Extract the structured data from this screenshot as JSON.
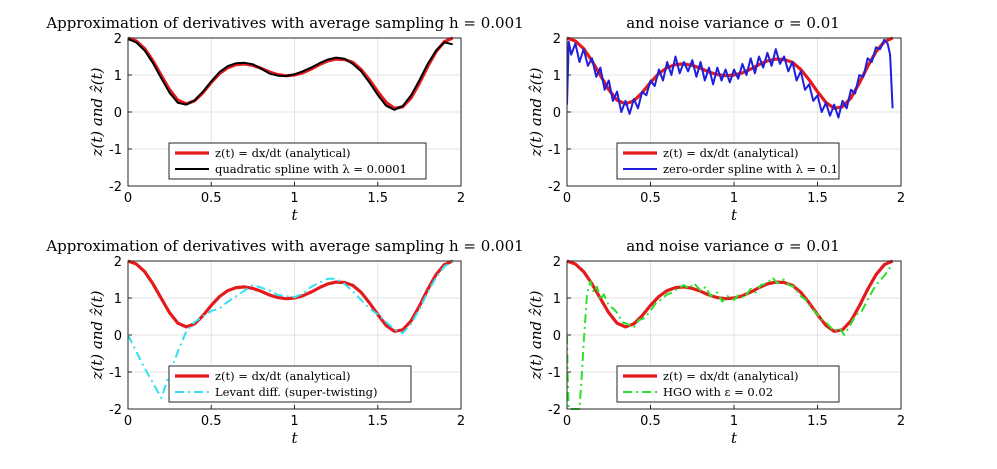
{
  "figure": {
    "panels": [
      {
        "title": "Approximation of derivatives with average sampling h = 0.001",
        "xlabel": "t",
        "ylabel": "z(t) and ẑ(t)",
        "legend": [
          "z(t) = dx/dt (analytical)",
          "quadratic spline with λ = 0.0001"
        ]
      },
      {
        "title": "and noise variance σ = 0.01",
        "xlabel": "t",
        "ylabel": "z(t) and ẑ(t)",
        "legend": [
          "z(t) = dx/dt (analytical)",
          "zero-order spline with λ = 0.1"
        ]
      },
      {
        "title": "Approximation of derivatives with average sampling h = 0.001",
        "xlabel": "t",
        "ylabel": "z(t) and ẑ(t)",
        "legend": [
          "z(t) = dx/dt (analytical)",
          "Levant diff. (super-twisting)"
        ]
      },
      {
        "title": "and noise variance σ = 0.01",
        "xlabel": "t",
        "ylabel": "z(t) and ẑ(t)",
        "legend": [
          "z(t) = dx/dt (analytical)",
          "HGO with ε = 0.02"
        ]
      }
    ]
  },
  "chart_data": [
    {
      "type": "line",
      "title": "Approximation of derivatives with average sampling h = 0.001",
      "xlabel": "t",
      "ylabel": "z(t) and ẑ(t)",
      "xlim": [
        0,
        2
      ],
      "ylim": [
        -2,
        2
      ],
      "xticks": [
        "0",
        "0.5",
        "1",
        "1.5",
        "2"
      ],
      "yticks": [
        "-2",
        "-1",
        "0",
        "1",
        "2"
      ],
      "grid": true,
      "legend_position": "bottom-center",
      "series": [
        {
          "name": "z(t) = dx/dt (analytical)",
          "color": "#e41a1c",
          "style": "solid",
          "x": [
            0,
            0.05,
            0.1,
            0.15,
            0.2,
            0.25,
            0.3,
            0.35,
            0.4,
            0.45,
            0.5,
            0.55,
            0.6,
            0.65,
            0.7,
            0.75,
            0.8,
            0.85,
            0.9,
            0.95,
            1.0,
            1.05,
            1.1,
            1.15,
            1.2,
            1.25,
            1.3,
            1.35,
            1.4,
            1.45,
            1.5,
            1.55,
            1.6,
            1.65,
            1.7,
            1.75,
            1.8,
            1.85,
            1.9,
            1.95
          ],
          "y": [
            2.0,
            1.92,
            1.71,
            1.38,
            0.99,
            0.6,
            0.32,
            0.22,
            0.3,
            0.52,
            0.8,
            1.04,
            1.2,
            1.28,
            1.3,
            1.26,
            1.18,
            1.08,
            1.01,
            0.98,
            1.0,
            1.06,
            1.16,
            1.28,
            1.38,
            1.43,
            1.42,
            1.34,
            1.15,
            0.87,
            0.55,
            0.26,
            0.1,
            0.14,
            0.38,
            0.78,
            1.23,
            1.63,
            1.9,
            2.0
          ]
        },
        {
          "name": "quadratic spline with λ = 0.0001",
          "color": "#000000",
          "style": "solid",
          "x": [
            0,
            0.05,
            0.1,
            0.15,
            0.2,
            0.25,
            0.3,
            0.35,
            0.4,
            0.45,
            0.5,
            0.55,
            0.6,
            0.65,
            0.7,
            0.75,
            0.8,
            0.85,
            0.9,
            0.95,
            1.0,
            1.05,
            1.1,
            1.15,
            1.2,
            1.25,
            1.3,
            1.35,
            1.4,
            1.45,
            1.5,
            1.55,
            1.6,
            1.65,
            1.7,
            1.75,
            1.8,
            1.85,
            1.9,
            1.95
          ],
          "y": [
            1.97,
            1.88,
            1.66,
            1.32,
            0.91,
            0.52,
            0.25,
            0.2,
            0.32,
            0.55,
            0.83,
            1.08,
            1.24,
            1.32,
            1.33,
            1.29,
            1.17,
            1.04,
            0.98,
            0.97,
            1.02,
            1.1,
            1.2,
            1.32,
            1.42,
            1.47,
            1.44,
            1.3,
            1.1,
            0.8,
            0.46,
            0.17,
            0.06,
            0.16,
            0.45,
            0.86,
            1.3,
            1.66,
            1.88,
            1.83
          ]
        }
      ]
    },
    {
      "type": "line",
      "title": "and noise variance σ = 0.01",
      "xlabel": "t",
      "ylabel": "z(t) and ẑ(t)",
      "xlim": [
        0,
        2
      ],
      "ylim": [
        -2,
        2
      ],
      "xticks": [
        "0",
        "0.5",
        "1",
        "1.5",
        "2"
      ],
      "yticks": [
        "-2",
        "-1",
        "0",
        "1",
        "2"
      ],
      "grid": true,
      "legend_position": "bottom-center",
      "series": [
        {
          "name": "z(t) = dx/dt (analytical)",
          "color": "#e41a1c",
          "style": "solid",
          "x": [
            0,
            0.05,
            0.1,
            0.15,
            0.2,
            0.25,
            0.3,
            0.35,
            0.4,
            0.45,
            0.5,
            0.55,
            0.6,
            0.65,
            0.7,
            0.75,
            0.8,
            0.85,
            0.9,
            0.95,
            1.0,
            1.05,
            1.1,
            1.15,
            1.2,
            1.25,
            1.3,
            1.35,
            1.4,
            1.45,
            1.5,
            1.55,
            1.6,
            1.65,
            1.7,
            1.75,
            1.8,
            1.85,
            1.9,
            1.95
          ],
          "y": [
            2.0,
            1.92,
            1.71,
            1.38,
            0.99,
            0.6,
            0.32,
            0.22,
            0.3,
            0.52,
            0.8,
            1.04,
            1.2,
            1.28,
            1.3,
            1.26,
            1.18,
            1.08,
            1.01,
            0.98,
            1.0,
            1.06,
            1.16,
            1.28,
            1.38,
            1.43,
            1.42,
            1.34,
            1.15,
            0.87,
            0.55,
            0.26,
            0.1,
            0.14,
            0.38,
            0.78,
            1.23,
            1.63,
            1.9,
            2.0
          ]
        },
        {
          "name": "zero-order spline with λ = 0.1",
          "color": "#1f1fe0",
          "style": "solid",
          "x": [
            0,
            0.01,
            0.025,
            0.05,
            0.075,
            0.1,
            0.125,
            0.15,
            0.175,
            0.2,
            0.225,
            0.25,
            0.275,
            0.3,
            0.325,
            0.35,
            0.375,
            0.4,
            0.425,
            0.45,
            0.475,
            0.5,
            0.525,
            0.55,
            0.575,
            0.6,
            0.625,
            0.65,
            0.675,
            0.7,
            0.725,
            0.75,
            0.775,
            0.8,
            0.825,
            0.85,
            0.875,
            0.9,
            0.925,
            0.95,
            0.975,
            1.0,
            1.025,
            1.05,
            1.075,
            1.1,
            1.125,
            1.15,
            1.175,
            1.2,
            1.225,
            1.25,
            1.275,
            1.3,
            1.325,
            1.35,
            1.375,
            1.4,
            1.425,
            1.45,
            1.475,
            1.5,
            1.525,
            1.55,
            1.575,
            1.6,
            1.625,
            1.65,
            1.675,
            1.7,
            1.725,
            1.75,
            1.775,
            1.8,
            1.825,
            1.85,
            1.875,
            1.9,
            1.92,
            1.935,
            1.95
          ],
          "y": [
            0.2,
            1.9,
            1.55,
            1.85,
            1.35,
            1.7,
            1.25,
            1.45,
            0.95,
            1.2,
            0.6,
            0.85,
            0.3,
            0.55,
            0.0,
            0.3,
            -0.05,
            0.35,
            0.1,
            0.55,
            0.45,
            0.85,
            0.7,
            1.15,
            0.85,
            1.35,
            1.0,
            1.5,
            1.05,
            1.35,
            1.1,
            1.4,
            0.95,
            1.35,
            0.85,
            1.2,
            0.75,
            1.2,
            0.85,
            1.15,
            0.8,
            1.15,
            0.9,
            1.3,
            1.0,
            1.45,
            1.05,
            1.5,
            1.2,
            1.6,
            1.25,
            1.7,
            1.3,
            1.5,
            1.1,
            1.35,
            0.85,
            1.1,
            0.6,
            0.75,
            0.3,
            0.45,
            0.0,
            0.25,
            -0.1,
            0.2,
            -0.15,
            0.3,
            0.1,
            0.6,
            0.5,
            1.0,
            0.95,
            1.45,
            1.35,
            1.75,
            1.7,
            1.95,
            1.85,
            1.55,
            0.1
          ]
        }
      ]
    },
    {
      "type": "line",
      "title": "Approximation of derivatives with average sampling h = 0.001",
      "xlabel": "t",
      "ylabel": "z(t) and ẑ(t)",
      "xlim": [
        0,
        2
      ],
      "ylim": [
        -2,
        2
      ],
      "xticks": [
        "0",
        "0.5",
        "1",
        "1.5",
        "2"
      ],
      "yticks": [
        "-2",
        "-1",
        "0",
        "1",
        "2"
      ],
      "grid": true,
      "legend_position": "bottom-center",
      "series": [
        {
          "name": "z(t) = dx/dt (analytical)",
          "color": "#e41a1c",
          "style": "solid",
          "x": [
            0,
            0.05,
            0.1,
            0.15,
            0.2,
            0.25,
            0.3,
            0.35,
            0.4,
            0.45,
            0.5,
            0.55,
            0.6,
            0.65,
            0.7,
            0.75,
            0.8,
            0.85,
            0.9,
            0.95,
            1.0,
            1.05,
            1.1,
            1.15,
            1.2,
            1.25,
            1.3,
            1.35,
            1.4,
            1.45,
            1.5,
            1.55,
            1.6,
            1.65,
            1.7,
            1.75,
            1.8,
            1.85,
            1.9,
            1.95
          ],
          "y": [
            2.0,
            1.92,
            1.71,
            1.38,
            0.99,
            0.6,
            0.32,
            0.22,
            0.3,
            0.52,
            0.8,
            1.04,
            1.2,
            1.28,
            1.3,
            1.26,
            1.18,
            1.08,
            1.01,
            0.98,
            1.0,
            1.06,
            1.16,
            1.28,
            1.38,
            1.43,
            1.42,
            1.34,
            1.15,
            0.87,
            0.55,
            0.26,
            0.1,
            0.14,
            0.38,
            0.78,
            1.23,
            1.63,
            1.9,
            2.0
          ]
        },
        {
          "name": "Levant diff. (super-twisting)",
          "color": "#33e0f0",
          "style": "dashdot",
          "x": [
            0,
            0.05,
            0.1,
            0.15,
            0.2,
            0.25,
            0.3,
            0.35,
            0.4,
            0.45,
            0.5,
            0.55,
            0.6,
            0.65,
            0.7,
            0.75,
            0.8,
            0.85,
            0.9,
            0.95,
            1.0,
            1.05,
            1.1,
            1.15,
            1.2,
            1.25,
            1.3,
            1.35,
            1.4,
            1.45,
            1.5,
            1.55,
            1.6,
            1.65,
            1.7,
            1.75,
            1.8,
            1.85,
            1.9,
            1.95
          ],
          "y": [
            0.0,
            -0.45,
            -0.9,
            -1.3,
            -1.7,
            -1.05,
            -0.45,
            0.1,
            0.35,
            0.5,
            0.65,
            0.72,
            0.9,
            1.05,
            1.2,
            1.35,
            1.28,
            1.2,
            1.08,
            1.05,
            1.02,
            1.12,
            1.3,
            1.42,
            1.52,
            1.52,
            1.38,
            1.18,
            0.95,
            0.72,
            0.55,
            0.35,
            0.15,
            0.05,
            0.3,
            0.7,
            1.15,
            1.55,
            1.85,
            2.0
          ]
        }
      ]
    },
    {
      "type": "line",
      "title": "and noise variance σ = 0.01",
      "xlabel": "t",
      "ylabel": "z(t) and ẑ(t)",
      "xlim": [
        0,
        2
      ],
      "ylim": [
        -2,
        2
      ],
      "xticks": [
        "0",
        "0.5",
        "1",
        "1.5",
        "2"
      ],
      "yticks": [
        "-2",
        "-1",
        "0",
        "1",
        "2"
      ],
      "grid": true,
      "legend_position": "bottom-center",
      "series": [
        {
          "name": "z(t) = dx/dt (analytical)",
          "color": "#e41a1c",
          "style": "solid",
          "x": [
            0,
            0.05,
            0.1,
            0.15,
            0.2,
            0.25,
            0.3,
            0.35,
            0.4,
            0.45,
            0.5,
            0.55,
            0.6,
            0.65,
            0.7,
            0.75,
            0.8,
            0.85,
            0.9,
            0.95,
            1.0,
            1.05,
            1.1,
            1.15,
            1.2,
            1.25,
            1.3,
            1.35,
            1.4,
            1.45,
            1.5,
            1.55,
            1.6,
            1.65,
            1.7,
            1.75,
            1.8,
            1.85,
            1.9,
            1.95
          ],
          "y": [
            2.0,
            1.92,
            1.71,
            1.38,
            0.99,
            0.6,
            0.32,
            0.22,
            0.3,
            0.52,
            0.8,
            1.04,
            1.2,
            1.28,
            1.3,
            1.26,
            1.18,
            1.08,
            1.01,
            0.98,
            1.0,
            1.06,
            1.16,
            1.28,
            1.38,
            1.43,
            1.42,
            1.34,
            1.15,
            0.87,
            0.55,
            0.26,
            0.1,
            0.14,
            0.38,
            0.78,
            1.23,
            1.63,
            1.9,
            2.0
          ]
        },
        {
          "name": "HGO with ε = 0.02",
          "color": "#2ee02e",
          "style": "dashdot",
          "x": [
            0,
            0.005,
            0.01,
            0.04,
            0.06,
            0.075,
            0.09,
            0.1,
            0.12,
            0.14,
            0.16,
            0.18,
            0.2,
            0.22,
            0.25,
            0.28,
            0.3,
            0.33,
            0.36,
            0.4,
            0.43,
            0.46,
            0.5,
            0.53,
            0.56,
            0.6,
            0.63,
            0.66,
            0.7,
            0.73,
            0.76,
            0.8,
            0.83,
            0.86,
            0.9,
            0.93,
            0.96,
            1.0,
            1.03,
            1.06,
            1.1,
            1.13,
            1.16,
            1.2,
            1.23,
            1.26,
            1.3,
            1.33,
            1.36,
            1.4,
            1.43,
            1.46,
            1.5,
            1.53,
            1.56,
            1.6,
            1.63,
            1.66,
            1.7,
            1.73,
            1.76,
            1.8,
            1.83,
            1.86,
            1.9,
            1.93,
            1.95
          ],
          "y": [
            0.0,
            -1.2,
            -2.0,
            -2.0,
            -2.0,
            -2.0,
            -1.0,
            -0.2,
            1.1,
            1.45,
            1.15,
            1.3,
            0.95,
            1.1,
            0.8,
            0.7,
            0.6,
            0.35,
            0.3,
            0.2,
            0.4,
            0.45,
            0.65,
            0.85,
            0.95,
            1.1,
            1.15,
            1.25,
            1.35,
            1.25,
            1.4,
            1.2,
            1.3,
            1.05,
            1.15,
            0.9,
            1.05,
            0.95,
            1.1,
            1.0,
            1.25,
            1.15,
            1.35,
            1.4,
            1.55,
            1.4,
            1.5,
            1.35,
            1.3,
            1.05,
            0.95,
            0.75,
            0.55,
            0.4,
            0.3,
            0.1,
            0.2,
            0.0,
            0.3,
            0.55,
            0.6,
            0.95,
            1.2,
            1.4,
            1.6,
            1.8,
            1.9
          ]
        }
      ]
    }
  ]
}
